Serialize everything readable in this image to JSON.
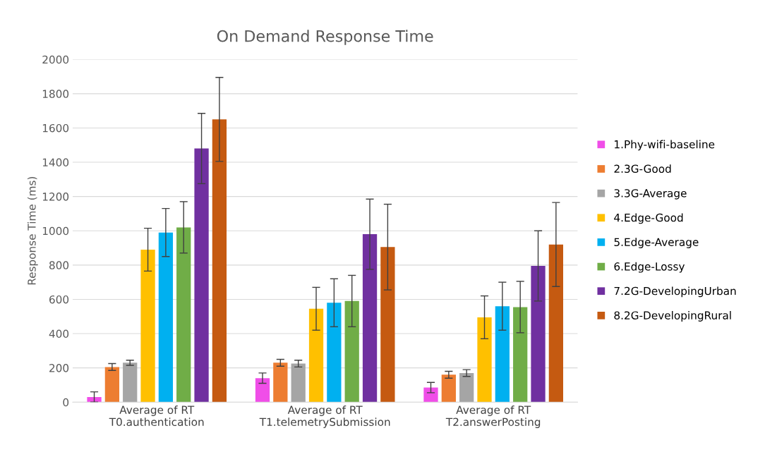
{
  "chart_data": {
    "type": "bar",
    "title": "On Demand Response Time",
    "ylabel": "Response Time (ms)",
    "categories": [
      "Average of RT\nT0.authentication",
      "Average of RT\nT1.telemetrySubmission",
      "Average of RT\nT2.answerPosting"
    ],
    "series": [
      {
        "name": "1.Phy-wifi-baseline",
        "color": "#f04ee8",
        "values": [
          30,
          140,
          85
        ],
        "errors": [
          30,
          30,
          30
        ]
      },
      {
        "name": "2.3G-Good",
        "color": "#ed7d31",
        "values": [
          205,
          230,
          160
        ],
        "errors": [
          20,
          20,
          20
        ]
      },
      {
        "name": "3.3G-Average",
        "color": "#a5a5a5",
        "values": [
          230,
          225,
          170
        ],
        "errors": [
          15,
          20,
          20
        ]
      },
      {
        "name": "4.Edge-Good",
        "color": "#ffc000",
        "values": [
          890,
          545,
          495
        ],
        "errors": [
          125,
          125,
          125
        ]
      },
      {
        "name": "5.Edge-Average",
        "color": "#00b0f0",
        "values": [
          990,
          580,
          560
        ],
        "errors": [
          140,
          140,
          140
        ]
      },
      {
        "name": "6.Edge-Lossy",
        "color": "#70ad47",
        "values": [
          1020,
          590,
          555
        ],
        "errors": [
          150,
          150,
          150
        ]
      },
      {
        "name": "7.2G-DevelopingUrban",
        "color": "#7030a0",
        "values": [
          1480,
          980,
          795
        ],
        "errors": [
          205,
          205,
          205
        ]
      },
      {
        "name": "8.2G-DevelopingRural",
        "color": "#c55a11",
        "values": [
          1650,
          905,
          920
        ],
        "errors": [
          245,
          250,
          245
        ]
      }
    ],
    "ylim": [
      0,
      2000
    ],
    "yticks": [
      0,
      200,
      400,
      600,
      800,
      1000,
      1200,
      1400,
      1600,
      1800,
      2000
    ],
    "grid": "y",
    "legend": "right"
  }
}
